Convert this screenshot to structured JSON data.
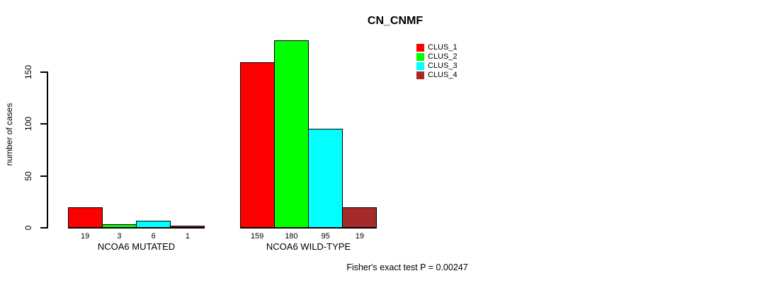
{
  "title": "CN_CNMF",
  "y_axis": {
    "label": "number of cases",
    "ticks": [
      0,
      50,
      100,
      150
    ]
  },
  "legend": [
    {
      "label": "CLUS_1",
      "color": "#FF0000"
    },
    {
      "label": "CLUS_2",
      "color": "#00FF00"
    },
    {
      "label": "CLUS_3",
      "color": "#00FFFF"
    },
    {
      "label": "CLUS_4",
      "color": "#A52A2A"
    }
  ],
  "footer_note": "Fisher's exact test P = 0.00247",
  "chart_data": {
    "type": "bar",
    "title": "CN_CNMF",
    "xlabel": "",
    "ylabel": "number of cases",
    "yticks": [
      0,
      50,
      100,
      150
    ],
    "ylim": [
      0,
      185
    ],
    "grid": false,
    "legend_position": "top-right-inside",
    "bar_value_labels": true,
    "categories": [
      "NCOA6 MUTATED",
      "NCOA6 WILD-TYPE"
    ],
    "series": [
      {
        "name": "CLUS_1",
        "color": "#FF0000",
        "values": [
          19,
          159
        ]
      },
      {
        "name": "CLUS_2",
        "color": "#00FF00",
        "values": [
          3,
          180
        ]
      },
      {
        "name": "CLUS_3",
        "color": "#00FFFF",
        "values": [
          6,
          95
        ]
      },
      {
        "name": "CLUS_4",
        "color": "#A52A2A",
        "values": [
          1,
          19
        ]
      }
    ],
    "annotation": "Fisher's exact test P = 0.00247"
  }
}
